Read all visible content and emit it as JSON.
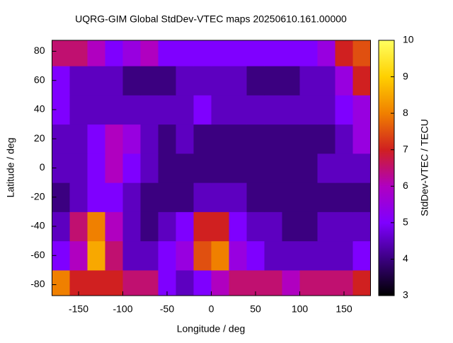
{
  "chart_data": {
    "type": "heatmap",
    "title": "UQRG-GIM Global StdDev-VTEC maps 20250610.161.00000",
    "x_label": "Longitude / deg",
    "y_label": "Latitude / deg",
    "colorbar_label": "StdDev-VTEC / TECU",
    "x_edges": [
      -180,
      -160,
      -140,
      -120,
      -100,
      -80,
      -60,
      -40,
      -20,
      0,
      20,
      40,
      60,
      80,
      100,
      120,
      140,
      160,
      180
    ],
    "y_edges": [
      -87.5,
      -70,
      -50,
      -30,
      -10,
      10,
      30,
      50,
      70,
      87.5
    ],
    "values": [
      [
        8,
        7,
        7,
        7,
        6.5,
        6.5,
        5,
        4.5,
        5,
        6,
        6.5,
        6.5,
        6.5,
        6,
        6.5,
        6.5,
        6.5,
        7
      ],
      [
        5,
        6,
        8.5,
        6.5,
        4.5,
        4.5,
        5,
        5.5,
        7.5,
        8,
        5.5,
        5,
        4.5,
        4.5,
        4.5,
        4.5,
        4.5,
        5
      ],
      [
        4.5,
        6.5,
        8,
        6,
        4.5,
        4,
        4.5,
        5,
        7,
        7,
        5,
        4.5,
        4.5,
        4,
        4,
        4.5,
        4.5,
        4.5
      ],
      [
        4,
        4.5,
        5,
        5,
        4.5,
        4,
        4,
        4,
        4.5,
        4.5,
        4.5,
        4,
        4,
        4,
        4,
        4,
        4,
        4
      ],
      [
        4.5,
        4.5,
        5,
        6,
        5,
        4.5,
        4,
        4,
        4,
        4,
        4,
        4,
        4,
        4,
        4,
        4.5,
        4.5,
        4.5
      ],
      [
        4.5,
        4.5,
        5,
        6,
        5.5,
        4.5,
        4,
        4.5,
        4,
        4,
        4,
        4,
        4,
        4,
        4,
        4,
        4.5,
        5.5
      ],
      [
        5,
        4.5,
        4.5,
        4.5,
        4.5,
        4.5,
        4.5,
        4.5,
        5,
        4.5,
        4.5,
        4.5,
        4.5,
        4.5,
        4.5,
        4.5,
        5,
        5.5
      ],
      [
        5,
        4.5,
        4.5,
        4.5,
        4,
        4,
        4,
        4.5,
        4.5,
        4.5,
        4.5,
        4,
        4,
        4,
        4.5,
        4.5,
        5.5,
        7
      ],
      [
        6.5,
        6.5,
        6,
        5,
        5.5,
        6,
        5,
        5,
        5,
        5,
        5,
        5,
        5,
        5,
        5,
        5.5,
        7,
        7.5
      ]
    ],
    "xlim": [
      -180,
      180
    ],
    "ylim": [
      -87.5,
      87.5
    ],
    "clim": [
      3,
      10
    ],
    "xticks": [
      -150,
      -100,
      -50,
      0,
      50,
      100,
      150
    ],
    "yticks": [
      -80,
      -60,
      -40,
      -20,
      0,
      20,
      40,
      60,
      80
    ],
    "cticks": [
      3,
      4,
      5,
      6,
      7,
      8,
      9,
      10
    ],
    "palette": [
      "#000000",
      "#3b0080",
      "#7f00ff",
      "#b000c0",
      "#d02020",
      "#f08000",
      "#ffd000",
      "#ffff60"
    ]
  }
}
